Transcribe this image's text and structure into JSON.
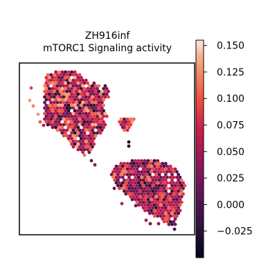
{
  "chart_data": {
    "type": "scatter",
    "title": "ZH916inf",
    "subtitle": "mTORC1 Signaling activity",
    "xlabel": "",
    "ylabel": "",
    "grid": false,
    "legend": "none",
    "colorbar": {
      "position": "right",
      "colormap": "rocket",
      "range": [
        -0.05,
        0.155
      ],
      "ticks": [
        -0.025,
        0.0,
        0.025,
        0.05,
        0.075,
        0.1,
        0.125,
        0.15
      ],
      "tick_labels": [
        "−0.025",
        "0.000",
        "0.025",
        "0.050",
        "0.075",
        "0.100",
        "0.125",
        "0.150"
      ]
    },
    "regions": [
      {
        "name": "upper-left tissue",
        "value_range": [
          -0.03,
          0.14
        ],
        "typical": 0.06
      },
      {
        "name": "small middle cluster",
        "value_range": [
          0.0,
          0.13
        ],
        "typical": 0.08
      },
      {
        "name": "lower-right tissue",
        "value_range": [
          -0.03,
          0.12
        ],
        "typical": 0.05
      }
    ]
  },
  "colors": {
    "axes_frame": "#000000",
    "background": "#ffffff"
  }
}
